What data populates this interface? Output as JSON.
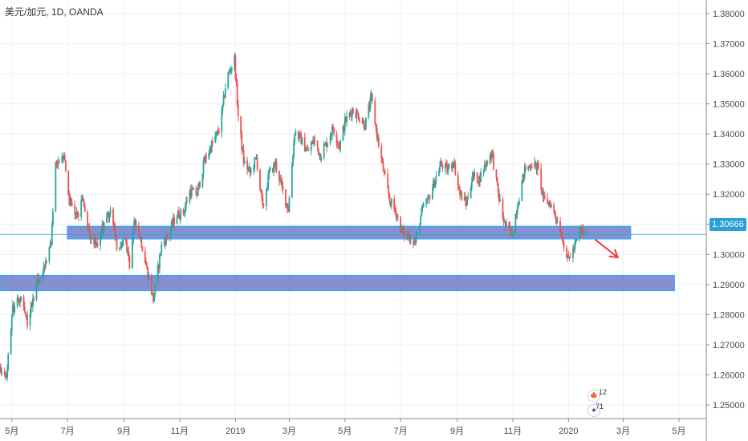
{
  "header": {
    "title": "美元/加元, 1D, OANDA"
  },
  "price_badge": {
    "label": "1.30666"
  },
  "events": {
    "top_count": "12",
    "bottom_count": "71"
  },
  "colors": {
    "up": "#26a69a",
    "down": "#ef5350",
    "zone_fill": "#5c6bc0",
    "zone_stroke": "#42a5f5",
    "grid": "#eef0f3",
    "axis": "#888888",
    "price_line": "#2b9fd9",
    "arrow": "#ef3b3b"
  },
  "chart_data": {
    "type": "candlestick",
    "title": "美元/加元, 1D, OANDA",
    "xlabel": "",
    "ylabel": "",
    "ylim": [
      1.2455,
      1.3845
    ],
    "xlim": [
      "2018-04-18",
      "2020-05-31"
    ],
    "y_ticks": [
      "1.25000",
      "1.26000",
      "1.27000",
      "1.28000",
      "1.29000",
      "1.30000",
      "1.31000",
      "1.32000",
      "1.33000",
      "1.34000",
      "1.35000",
      "1.36000",
      "1.37000",
      "1.38000"
    ],
    "x_ticks": [
      {
        "date": "2018-05-01",
        "label": "5月"
      },
      {
        "date": "2018-07-01",
        "label": "7月"
      },
      {
        "date": "2018-09-01",
        "label": "9月"
      },
      {
        "date": "2018-11-01",
        "label": "11月"
      },
      {
        "date": "2019-01-01",
        "label": "2019"
      },
      {
        "date": "2019-03-01",
        "label": "3月"
      },
      {
        "date": "2019-05-01",
        "label": "5月"
      },
      {
        "date": "2019-07-01",
        "label": "7月"
      },
      {
        "date": "2019-09-01",
        "label": "9月"
      },
      {
        "date": "2019-11-01",
        "label": "11月"
      },
      {
        "date": "2020-01-01",
        "label": "2020"
      },
      {
        "date": "2020-03-01",
        "label": "3月"
      },
      {
        "date": "2020-05-01",
        "label": "5月"
      }
    ],
    "price_path": [
      [
        "2018-04-18",
        1.261
      ],
      [
        "2018-04-25",
        1.26
      ],
      [
        "2018-05-02",
        1.282
      ],
      [
        "2018-05-10",
        1.286
      ],
      [
        "2018-05-18",
        1.278
      ],
      [
        "2018-05-28",
        1.29
      ],
      [
        "2018-06-05",
        1.296
      ],
      [
        "2018-06-13",
        1.303
      ],
      [
        "2018-06-18",
        1.33
      ],
      [
        "2018-06-27",
        1.333
      ],
      [
        "2018-07-02",
        1.319
      ],
      [
        "2018-07-10",
        1.312
      ],
      [
        "2018-07-18",
        1.318
      ],
      [
        "2018-07-25",
        1.306
      ],
      [
        "2018-08-02",
        1.303
      ],
      [
        "2018-08-10",
        1.31
      ],
      [
        "2018-08-18",
        1.315
      ],
      [
        "2018-08-25",
        1.3
      ],
      [
        "2018-09-01",
        1.307
      ],
      [
        "2018-09-07",
        1.296
      ],
      [
        "2018-09-13",
        1.312
      ],
      [
        "2018-09-20",
        1.304
      ],
      [
        "2018-09-28",
        1.292
      ],
      [
        "2018-10-03",
        1.285
      ],
      [
        "2018-10-12",
        1.303
      ],
      [
        "2018-10-20",
        1.307
      ],
      [
        "2018-10-28",
        1.313
      ],
      [
        "2018-11-05",
        1.314
      ],
      [
        "2018-11-12",
        1.321
      ],
      [
        "2018-11-20",
        1.32
      ],
      [
        "2018-11-28",
        1.331
      ],
      [
        "2018-12-07",
        1.337
      ],
      [
        "2018-12-15",
        1.342
      ],
      [
        "2018-12-22",
        1.358
      ],
      [
        "2018-12-31",
        1.365
      ],
      [
        "2019-01-04",
        1.346
      ],
      [
        "2019-01-10",
        1.331
      ],
      [
        "2019-01-17",
        1.327
      ],
      [
        "2019-01-24",
        1.332
      ],
      [
        "2019-01-31",
        1.315
      ],
      [
        "2019-02-07",
        1.327
      ],
      [
        "2019-02-14",
        1.33
      ],
      [
        "2019-02-21",
        1.322
      ],
      [
        "2019-02-28",
        1.315
      ],
      [
        "2019-03-07",
        1.341
      ],
      [
        "2019-03-14",
        1.338
      ],
      [
        "2019-03-21",
        1.334
      ],
      [
        "2019-03-28",
        1.338
      ],
      [
        "2019-04-04",
        1.333
      ],
      [
        "2019-04-11",
        1.337
      ],
      [
        "2019-04-18",
        1.342
      ],
      [
        "2019-04-25",
        1.336
      ],
      [
        "2019-05-01",
        1.344
      ],
      [
        "2019-05-09",
        1.348
      ],
      [
        "2019-05-16",
        1.346
      ],
      [
        "2019-05-23",
        1.343
      ],
      [
        "2019-05-30",
        1.352
      ],
      [
        "2019-06-05",
        1.34
      ],
      [
        "2019-06-12",
        1.328
      ],
      [
        "2019-06-19",
        1.318
      ],
      [
        "2019-06-26",
        1.314
      ],
      [
        "2019-07-03",
        1.307
      ],
      [
        "2019-07-10",
        1.306
      ],
      [
        "2019-07-17",
        1.304
      ],
      [
        "2019-07-24",
        1.314
      ],
      [
        "2019-07-31",
        1.318
      ],
      [
        "2019-08-07",
        1.324
      ],
      [
        "2019-08-14",
        1.33
      ],
      [
        "2019-08-21",
        1.328
      ],
      [
        "2019-08-28",
        1.331
      ],
      [
        "2019-09-04",
        1.32
      ],
      [
        "2019-09-11",
        1.317
      ],
      [
        "2019-09-18",
        1.326
      ],
      [
        "2019-09-25",
        1.325
      ],
      [
        "2019-10-02",
        1.33
      ],
      [
        "2019-10-09",
        1.334
      ],
      [
        "2019-10-16",
        1.32
      ],
      [
        "2019-10-23",
        1.31
      ],
      [
        "2019-10-31",
        1.307
      ],
      [
        "2019-11-07",
        1.318
      ],
      [
        "2019-11-14",
        1.328
      ],
      [
        "2019-11-21",
        1.33
      ],
      [
        "2019-11-28",
        1.329
      ],
      [
        "2019-12-05",
        1.318
      ],
      [
        "2019-12-12",
        1.317
      ],
      [
        "2019-12-19",
        1.312
      ],
      [
        "2019-12-26",
        1.305
      ],
      [
        "2019-12-31",
        1.298
      ],
      [
        "2020-01-07",
        1.302
      ],
      [
        "2020-01-14",
        1.308
      ],
      [
        "2020-01-21",
        1.3066
      ]
    ],
    "zones": [
      {
        "y_low": 1.3052,
        "y_high": 1.3093,
        "x_start": "2018-07-01",
        "x_end": "2020-03-09"
      },
      {
        "y_low": 1.288,
        "y_high": 1.293,
        "x_start": "2018-04-18",
        "x_end": "2020-04-26"
      }
    ],
    "current_price": 1.30666,
    "projection_arrow": {
      "from": [
        "2020-01-30",
        1.305
      ],
      "to": [
        "2020-02-24",
        1.299
      ]
    }
  }
}
